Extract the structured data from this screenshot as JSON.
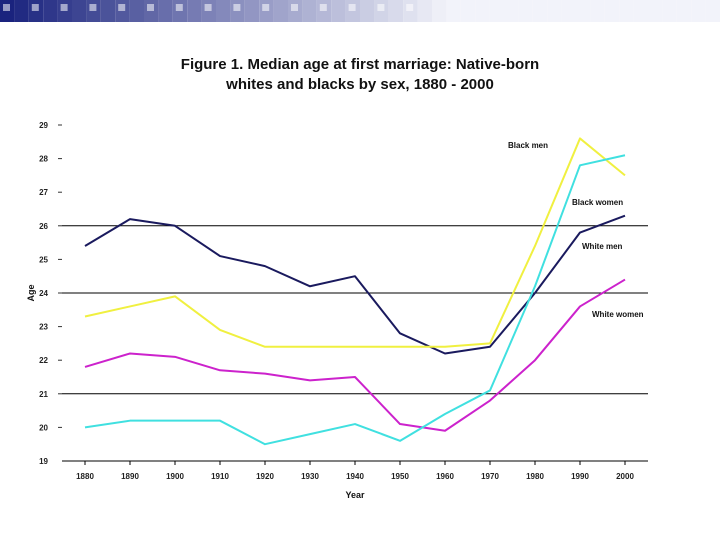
{
  "title": {
    "line1": "Figure 1. Median age at first marriage: Native-born",
    "line2": "whites and blacks by sex, 1880 - 2000"
  },
  "colors": {
    "stripe_dark": "#1a237e",
    "stripe_light": "#c5cae9",
    "white_men": "#1a1a5e",
    "white_women": "#cc22cc",
    "black_men": "#f0f040",
    "black_women": "#40e0e0",
    "gridline": "#000000"
  },
  "chart_data": {
    "type": "line",
    "title": "Figure 1. Median age at first marriage: Native-born whites and blacks by sex, 1880 - 2000",
    "xlabel": "Year",
    "ylabel": "Age",
    "x": [
      1880,
      1890,
      1900,
      1910,
      1920,
      1930,
      1940,
      1950,
      1960,
      1970,
      1980,
      1990,
      2000
    ],
    "x_tick_labels": [
      "1880",
      "1890",
      "1900",
      "1910",
      "1920",
      "1930",
      "1940",
      "1950",
      "1960",
      "1970",
      "1980",
      "1990",
      "2000"
    ],
    "ylim": [
      19,
      29
    ],
    "y_ticks": [
      19,
      20,
      21,
      22,
      23,
      24,
      25,
      26,
      27,
      28,
      29
    ],
    "y_tick_labels": [
      "19",
      "20",
      "21",
      "22",
      "23",
      "24",
      "25",
      "26",
      "27",
      "28",
      "29"
    ],
    "gridlines_y": [
      21,
      24,
      26
    ],
    "series": [
      {
        "name": "White men",
        "key": "white_men",
        "values": [
          25.4,
          26.2,
          26.0,
          25.1,
          24.8,
          24.2,
          24.5,
          22.8,
          22.2,
          22.4,
          24.0,
          25.8,
          26.3
        ]
      },
      {
        "name": "White women",
        "key": "white_women",
        "values": [
          21.8,
          22.2,
          22.1,
          21.7,
          21.6,
          21.4,
          21.5,
          20.1,
          19.9,
          20.8,
          22.0,
          23.6,
          24.4
        ]
      },
      {
        "name": "Black men",
        "key": "black_men",
        "values": [
          23.3,
          23.6,
          23.9,
          22.9,
          22.4,
          22.4,
          22.4,
          22.4,
          22.4,
          22.5,
          25.4,
          28.6,
          27.5
        ]
      },
      {
        "name": "Black women",
        "key": "black_women",
        "values": [
          20.0,
          20.2,
          20.2,
          20.2,
          19.5,
          19.8,
          20.1,
          19.6,
          20.4,
          21.1,
          24.2,
          27.8,
          28.1
        ]
      }
    ]
  }
}
